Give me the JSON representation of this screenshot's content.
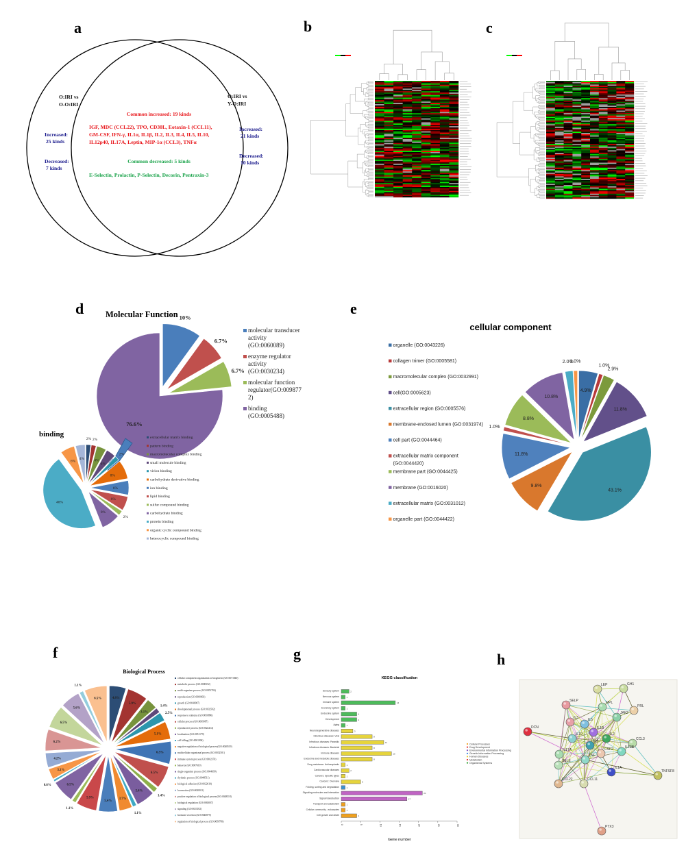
{
  "panels": {
    "a": "a",
    "b": "b",
    "c": "c",
    "d": "d",
    "e": "e",
    "f": "f",
    "g": "g",
    "h": "h"
  },
  "venn": {
    "left_title": [
      "O:IRI vs",
      "O-O:IRI"
    ],
    "right_title": [
      "O:IRI vs",
      "Y-O:IRI"
    ],
    "left_increased": [
      "Increased:",
      "25 kinds"
    ],
    "left_decreased": [
      "Decreased:",
      "7 kinds"
    ],
    "right_increased": [
      "Increased:",
      "21 kinds"
    ],
    "right_decreased": [
      "Decreased:",
      "10 kinds"
    ],
    "common_increased_title": "Common increased:   19 kinds",
    "common_increased_list": [
      "IGF, MDC (CCL22), TPO, CD30L, Eotaxin-1 (CCL11),",
      "GM-CSF, IFN-γ, IL1α, IL1β, IL2, IL3, IL4, IL5, IL10,",
      "IL12p40, IL17A, Leptin, MIP-1α (CCL3), TNFα"
    ],
    "common_decreased_title": "Common decreased:  5 kinds",
    "common_decreased_list": "E-Selectin, Prolactin, P-Selectin, Decorin, Pentraxin-3",
    "colors": {
      "increased": "#e8161b",
      "decreased": "#1aa34a",
      "side": "#1a1a8c"
    }
  },
  "heatmap_colors": {
    "high": "#ff0000",
    "low": "#00ff00",
    "mid": "#000000",
    "missing": "#a0a0a0"
  },
  "chart_data": [
    {
      "id": "molecular_function",
      "type": "pie",
      "title": "Molecular Function",
      "legend_position": "right",
      "categories": [
        "molecular transducer activity (GO:0060089)",
        "enzyme regulator activity (GO:0030234)",
        "molecular function regulator(GO:0098772)",
        "binding (GO:0005488)"
      ],
      "legend_lines": [
        [
          "molecular transducer",
          "activity",
          "(GO:0060089)"
        ],
        [
          "enzyme regulator",
          "activity",
          "(GO:0030234)"
        ],
        [
          "molecular function",
          "regulator(GO:009877",
          "2)"
        ],
        [
          "binding",
          "(GO:0005488)"
        ]
      ],
      "values": [
        10,
        6.7,
        6.7,
        76.6
      ],
      "labels": [
        "10%",
        "6.7%",
        "6.7%",
        "76.6%"
      ],
      "colors": [
        "#4a7ebb",
        "#c0504d",
        "#9bbb59",
        "#8064a2"
      ]
    },
    {
      "id": "binding",
      "type": "pie",
      "title": "binding",
      "legend_position": "right",
      "categories": [
        "extracellular matrix binding",
        "pattern binding",
        "macromolecular complex binding",
        "small molecule binding",
        "virion binding",
        "carbohydrate derivative binding",
        "ion binding",
        "lipid binding",
        "sulfur compound binding",
        "carbohydrate binding",
        "protein binding",
        "organic cyclic compound binding",
        "heterocyclic compound binding"
      ],
      "values": [
        2,
        2,
        4,
        4,
        2,
        8,
        6,
        6,
        2,
        8,
        46,
        6,
        4
      ],
      "labels": [
        "2%",
        "2%",
        "4%",
        "4%",
        "2%",
        "8%",
        "6%",
        "6%",
        "2%",
        "8%",
        "46%",
        "6%",
        "4%"
      ],
      "colors": [
        "#2c4d75",
        "#a33431",
        "#77933c",
        "#5f497a",
        "#2c96ad",
        "#e46c0a",
        "#4a7ebb",
        "#c0504d",
        "#9bbb59",
        "#8064a2",
        "#4bacc6",
        "#f79646",
        "#a5b6d8"
      ]
    },
    {
      "id": "cellular_component",
      "type": "pie",
      "title": "cellular component",
      "legend_position": "left",
      "categories": [
        "organelle (GO:0043226)",
        "collagen trimer (GO:0005581)",
        "macromolecular complex (GO:0032991)",
        "cell(GO:0005623)",
        "extracellular region (GO:0005576)",
        "membrane-enclosed lumen (GO:0031974)",
        "cell part (GO:0044464)",
        "extracellular matrix component (GO:0044420)",
        "membrane part (GO:0044425)",
        "membrane (GO:0016020)",
        "extracellular matrix (GO:0031012)",
        "organelle part (GO:0044422)"
      ],
      "legend_lines": [
        [
          "organelle (GO:0043226)"
        ],
        [
          "collagen trimer (GO:0005581)"
        ],
        [
          "macromolecular complex (GO:0032991)"
        ],
        [
          "cell(GO:0005623)"
        ],
        [
          "extracellular region (GO:0005576)"
        ],
        [
          "membrane-enclosed lumen (GO:0031974)"
        ],
        [
          "cell part (GO:0044464)"
        ],
        [
          "extracellular matrix component",
          "(GO:0044420)"
        ],
        [
          "membrane part (GO:0044425)"
        ],
        [
          "membrane (GO:0016020)"
        ],
        [
          "extracellular matrix (GO:0031012)"
        ],
        [
          "organelle part (GO:0044422)"
        ]
      ],
      "values": [
        4.9,
        1.0,
        2.9,
        11.8,
        43.1,
        9.8,
        11.8,
        1.0,
        8.8,
        10.8,
        2.0,
        1.0
      ],
      "labels": [
        "4.9%",
        "1.0%",
        "2.9%",
        "11.8%",
        "43.1%",
        "9.8%",
        "11.8%",
        "1.0%",
        "8.8%",
        "10.8%",
        "2.0%",
        "1.0%"
      ],
      "colors": [
        "#3a6ea5",
        "#b83a3a",
        "#7c9a3c",
        "#62508a",
        "#3a8fa3",
        "#d9782d",
        "#4f81bd",
        "#c0504d",
        "#9bbb59",
        "#8064a2",
        "#4bacc6",
        "#f79646"
      ]
    },
    {
      "id": "biological_process",
      "type": "pie",
      "title": "Biological Process",
      "legend_position": "right",
      "categories": [
        "cellular component organization or biogenesis (GO:0071840)",
        "metabolic process (GO:0008152)",
        "multi-organism process (GO:0051704)",
        "reproduction (GO:0000003)",
        "growth (GO:0040007)",
        "developmental process (GO:0032502)",
        "response to stimulus (GO:0050896)",
        "cellular process (GO:0009987)",
        "reproductive process (GO:0022414)",
        "localization (GO:0051179)",
        "cell killing (GO:0001906)",
        "negative regulation of biological process(GO:0048519)",
        "multicellular organismal process (GO:0032501)",
        "immune system process (GO:0002376)",
        "behavior (GO:0007610)",
        "single-organism process (GO:0044699)",
        "rhythmic process (GO:0048511)",
        "biological adhesion (GO:0022610)",
        "locomotion (GO:0040011)",
        "positive regulation of biological process(GO:0048518)",
        "biological regulation (GO:0065007)",
        "signaling (GO:0023052)",
        "hormone secretion (GO:0046879)",
        "regulation of biological process (GO:0050789)"
      ],
      "values": [
        4.8,
        5.9,
        3.1,
        1.4,
        2.5,
        5.1,
        6.5,
        6.5,
        1.4,
        5.4,
        1.1,
        3.7,
        5.4,
        5.9,
        1.1,
        6.5,
        0.6,
        3.1,
        4.2,
        6.2,
        6.5,
        5.6,
        1.1,
        6.5
      ],
      "labels": [
        "4.8%",
        "5.9%",
        "3.1%",
        "1.4%",
        "2.5%",
        "5.1%",
        "6.5%",
        "6.5%",
        "1.4%",
        "5.4%",
        "1.1%",
        "3.7%",
        "5.4%",
        "5.9%",
        "1.1%",
        "6.5%",
        "0.6%",
        "3.1%",
        "4.2%",
        "6.2%",
        "6.5%",
        "5.6%",
        "1.1%",
        "6.5%"
      ],
      "colors": [
        "#2c4d75",
        "#a33431",
        "#77933c",
        "#5f497a",
        "#2c96ad",
        "#e46c0a",
        "#3f74b5",
        "#c0504d",
        "#8db04a",
        "#7a5d9e",
        "#3fa9c4",
        "#f08a30",
        "#4a7ebb",
        "#c9484a",
        "#9bbb59",
        "#8064a2",
        "#4bacc6",
        "#f79646",
        "#95abd4",
        "#d99594",
        "#c3d69b",
        "#b3a2c7",
        "#93cddd",
        "#fac090"
      ]
    },
    {
      "id": "kegg",
      "type": "bar",
      "orientation": "horizontal",
      "title": "KEGG classification",
      "xlabel": "Gene number",
      "ylabel": "",
      "xlim": [
        0,
        30
      ],
      "xticks": [
        "0",
        "5",
        "10",
        "15",
        "20",
        "25",
        "30"
      ],
      "categories": [
        "Sensory system",
        "Nervous system",
        "Immune system",
        "Excretory system",
        "Endocrine system",
        "Development",
        "Aging",
        "Neurodegenerative diseases",
        "Infectious diseases: Viral",
        "Infectious diseases: Parasitic",
        "Infectious diseases: Bacterial",
        "Immune diseases",
        "Endocrine and metabolic diseases",
        "Drug resistance: Antineoplastic",
        "Cardiovascular diseases",
        "Cancers: Specific types",
        "Cancers: Overview",
        "Folding, sorting and degradation",
        "Signaling molecules and interaction",
        "Signal transduction",
        "Transport and catabolism",
        "Cellular community - eukaryotes",
        "Cell growth and death"
      ],
      "values": [
        2,
        1,
        14,
        1,
        4,
        4,
        1,
        3,
        8,
        11,
        8,
        13,
        8,
        1,
        2,
        1,
        5,
        1,
        21,
        17,
        1,
        1,
        4
      ],
      "groups": [
        "Organismal Systems",
        "Organismal Systems",
        "Organismal Systems",
        "Organismal Systems",
        "Organismal Systems",
        "Organismal Systems",
        "Organismal Systems",
        "Human Diseases",
        "Human Diseases",
        "Human Diseases",
        "Human Diseases",
        "Human Diseases",
        "Human Diseases",
        "Human Diseases",
        "Human Diseases",
        "Human Diseases",
        "Human Diseases",
        "Genetic Information Processing",
        "Environmental Information Processing",
        "Environmental Information Processing",
        "Cellular Processes",
        "Cellular Processes",
        "Cellular Processes"
      ],
      "group_colors": {
        "Organismal Systems": "#4dbb5b",
        "Human Diseases": "#e6d43c",
        "Genetic Information Processing": "#3b90d0",
        "Environmental Information Processing": "#c064c4",
        "Cellular Processes": "#efa01e"
      }
    }
  ],
  "network": {
    "legend": [
      {
        "label": "Cellular Processes",
        "color": "#f0a020"
      },
      {
        "label": "Drug Development",
        "color": "#e03030"
      },
      {
        "label": "Environmental Information Processing",
        "color": "#8050c0"
      },
      {
        "label": "Genetic Information Processing",
        "color": "#3080e0"
      },
      {
        "label": "Human Diseases",
        "color": "#e8d030"
      },
      {
        "label": "Metabolism",
        "color": "#e02020"
      },
      {
        "label": "Organismal Systems",
        "color": "#30a030"
      }
    ],
    "nodes": [
      {
        "id": "LEP",
        "color": "#d8dca0"
      },
      {
        "id": "GH1",
        "color": "#c8dca0"
      },
      {
        "id": "SELP",
        "color": "#e89aa0"
      },
      {
        "id": "MPL",
        "color": "#a8dcb0"
      },
      {
        "id": "PRL",
        "color": "#ecd0a8"
      },
      {
        "id": "JAK2",
        "color": "#8cd0a8"
      },
      {
        "id": "IL3",
        "color": "#e8a0a8"
      },
      {
        "id": "IL5",
        "color": "#80c0e0"
      },
      {
        "id": "IL1B",
        "color": "#a070e0"
      },
      {
        "id": "DCN",
        "color": "#e03040"
      },
      {
        "id": "IL10",
        "color": "#8cd0d0"
      },
      {
        "id": "IL2",
        "color": "#40a860"
      },
      {
        "id": "CCL3",
        "color": "#b8dca8"
      },
      {
        "id": "IL4",
        "color": "#40a0b0"
      },
      {
        "id": "CSF2",
        "color": "#ecc8b0"
      },
      {
        "id": "IL12B",
        "color": "#80d8c0"
      },
      {
        "id": "IL17A",
        "color": "#a8dcb0"
      },
      {
        "id": "TNF",
        "color": "#90d8c8"
      },
      {
        "id": "SELE",
        "color": "#b8e0b8"
      },
      {
        "id": "IL1A",
        "color": "#4050c8"
      },
      {
        "id": "TNFSF8",
        "color": "#c0c060"
      },
      {
        "id": "CCL22",
        "color": "#e0b890"
      },
      {
        "id": "CCL11",
        "color": "#d8dcb0"
      },
      {
        "id": "PTX3",
        "color": "#e0a088"
      }
    ]
  }
}
